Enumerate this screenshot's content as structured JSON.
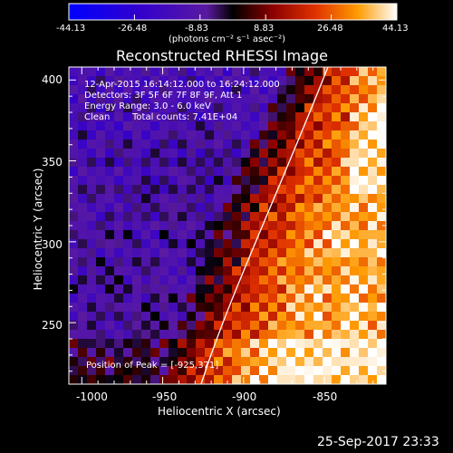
{
  "colorbar": {
    "tick_labels": [
      "-44.13",
      "-26.48",
      "-8.83",
      "8.83",
      "26.48",
      "44.13"
    ],
    "units": "(photons cm⁻² s⁻¹ asec⁻²)"
  },
  "title": "Reconstructed RHESSI Image",
  "annotations": {
    "time_range": "12-Apr-2015 16:14:12.000 to 16:24:12.000",
    "detectors": "Detectors: 3F 5F 6F 7F 8F 9F, Att 1",
    "energy": "Energy Range: 3.0 - 6.0 keV",
    "clean": "Clean",
    "counts": "Total counts: 7.41E+04",
    "peak": "Position of Peak = [-925,371]"
  },
  "axes": {
    "xlabel": "Heliocentric X (arcsec)",
    "ylabel": "Heliocentric Y (arcsec)",
    "xticks": [
      "-1000",
      "-950",
      "-900",
      "-850"
    ],
    "yticks": [
      "250",
      "300",
      "350",
      "400"
    ],
    "xticks_values": [
      -1000,
      -950,
      -900,
      -850
    ],
    "yticks_values": [
      250,
      300,
      350,
      400
    ],
    "xlim": [
      -1008,
      -812
    ],
    "ylim": [
      212,
      408
    ]
  },
  "footer_timestamp": "25-Sep-2017 23:33",
  "colors": {
    "background": "#000000",
    "limb_line": "#ffffff"
  }
}
